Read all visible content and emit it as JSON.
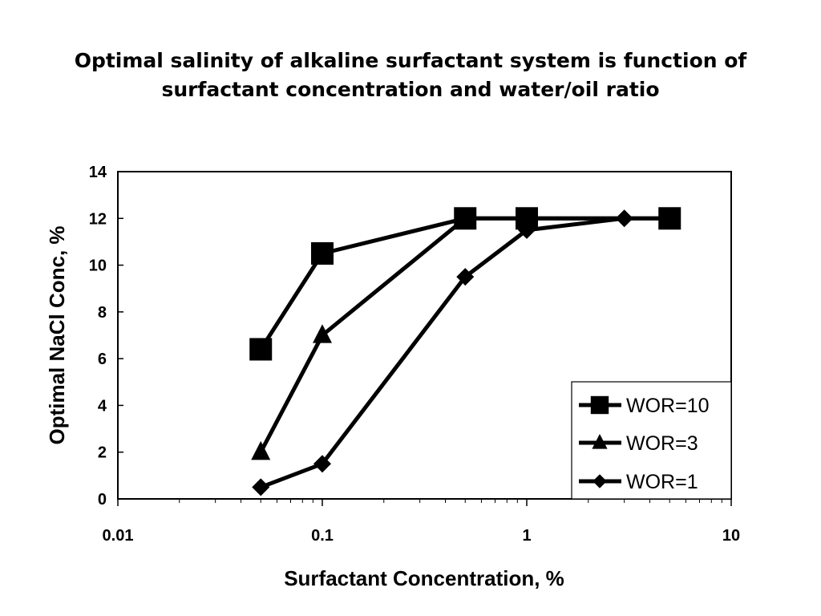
{
  "slide": {
    "title_line1": "Optimal salinity of alkaline surfactant system is function of",
    "title_line2": "surfactant concentration and water/oil ratio"
  },
  "chart_data": {
    "type": "line",
    "title": "",
    "xlabel": "Surfactant Concentration, %",
    "ylabel": "Optimal NaCl Conc, %",
    "xscale": "log",
    "xlim": [
      0.01,
      10
    ],
    "ylim": [
      0,
      14
    ],
    "xticks": [
      0.01,
      0.1,
      1,
      10
    ],
    "xtick_labels": [
      "0.01",
      "0.1",
      "1",
      "10"
    ],
    "yticks": [
      0,
      2,
      4,
      6,
      8,
      10,
      12,
      14
    ],
    "ytick_labels": [
      "0",
      "2",
      "4",
      "6",
      "8",
      "10",
      "12",
      "14"
    ],
    "grid": false,
    "legend_position": "bottom-right",
    "series": [
      {
        "name": "WOR=10",
        "marker": "square",
        "color": "#000000",
        "x": [
          0.05,
          0.1,
          0.5,
          1,
          5
        ],
        "y": [
          6.4,
          10.5,
          12,
          12,
          12
        ]
      },
      {
        "name": "WOR=3",
        "marker": "triangle",
        "color": "#000000",
        "x": [
          0.05,
          0.1,
          0.5,
          1,
          5
        ],
        "y": [
          2,
          7,
          12,
          12,
          12
        ]
      },
      {
        "name": "WOR=1",
        "marker": "diamond",
        "color": "#000000",
        "x": [
          0.05,
          0.1,
          0.5,
          1,
          3
        ],
        "y": [
          0.5,
          1.5,
          9.5,
          11.5,
          12
        ]
      }
    ]
  }
}
